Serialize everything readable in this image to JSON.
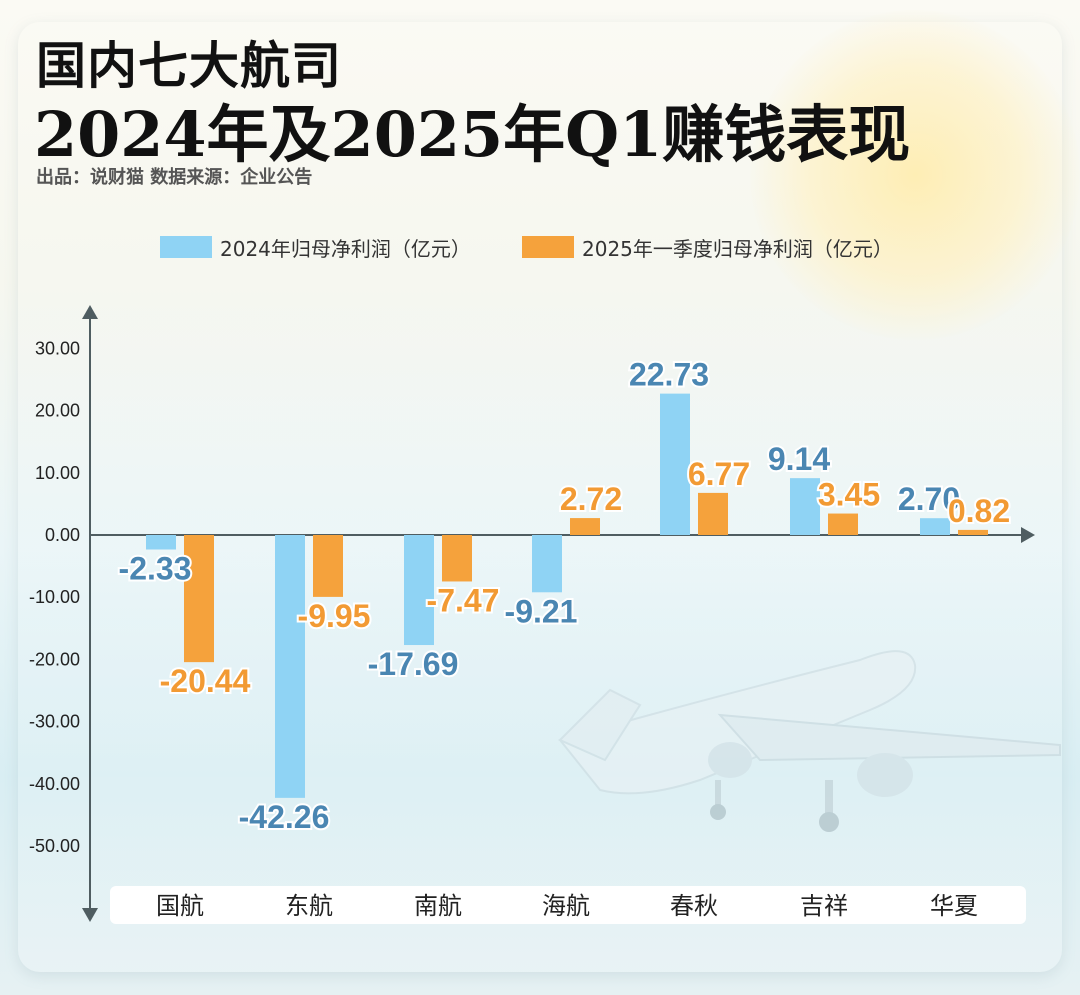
{
  "header": {
    "title_line1": "国内七大航司",
    "title_line2": "2024年及2025年Q1赚钱表现",
    "subtitle": "出品：说财猫 数据来源：企业公告"
  },
  "colors": {
    "series_2024": "#8fd3f4",
    "series_2025": "#f5a23c",
    "label_2024": "#4a86b2",
    "label_2025": "#f29a33",
    "axis": "#4f5d61"
  },
  "chart_data": {
    "type": "bar",
    "categories": [
      "国航",
      "东航",
      "南航",
      "海航",
      "春秋",
      "吉祥",
      "华夏"
    ],
    "series": [
      {
        "name": "2024年归母净利润（亿元）",
        "values": [
          -2.33,
          -42.26,
          -17.69,
          -9.21,
          22.73,
          9.14,
          2.7
        ]
      },
      {
        "name": "2025年一季度归母净利润（亿元）",
        "values": [
          -20.44,
          -9.95,
          -7.47,
          2.72,
          6.77,
          3.45,
          0.82
        ]
      }
    ],
    "data_labels": [
      [
        "-2.33",
        "-42.26",
        "-17.69",
        "-9.21",
        "22.73",
        "9.14",
        "2.70"
      ],
      [
        "-20.44",
        "-9.95",
        "-7.47",
        "2.72",
        "6.77",
        "3.45",
        "0.82"
      ]
    ],
    "yticks": [
      "30.00",
      "20.00",
      "10.00",
      "0.00",
      "-10.00",
      "-20.00",
      "-30.00",
      "-40.00",
      "-50.00"
    ],
    "ytick_values": [
      30,
      20,
      10,
      0,
      -10,
      -20,
      -30,
      -40,
      -50
    ],
    "ylim": [
      -60,
      38
    ],
    "legend_position": "top-center",
    "grid": false
  }
}
